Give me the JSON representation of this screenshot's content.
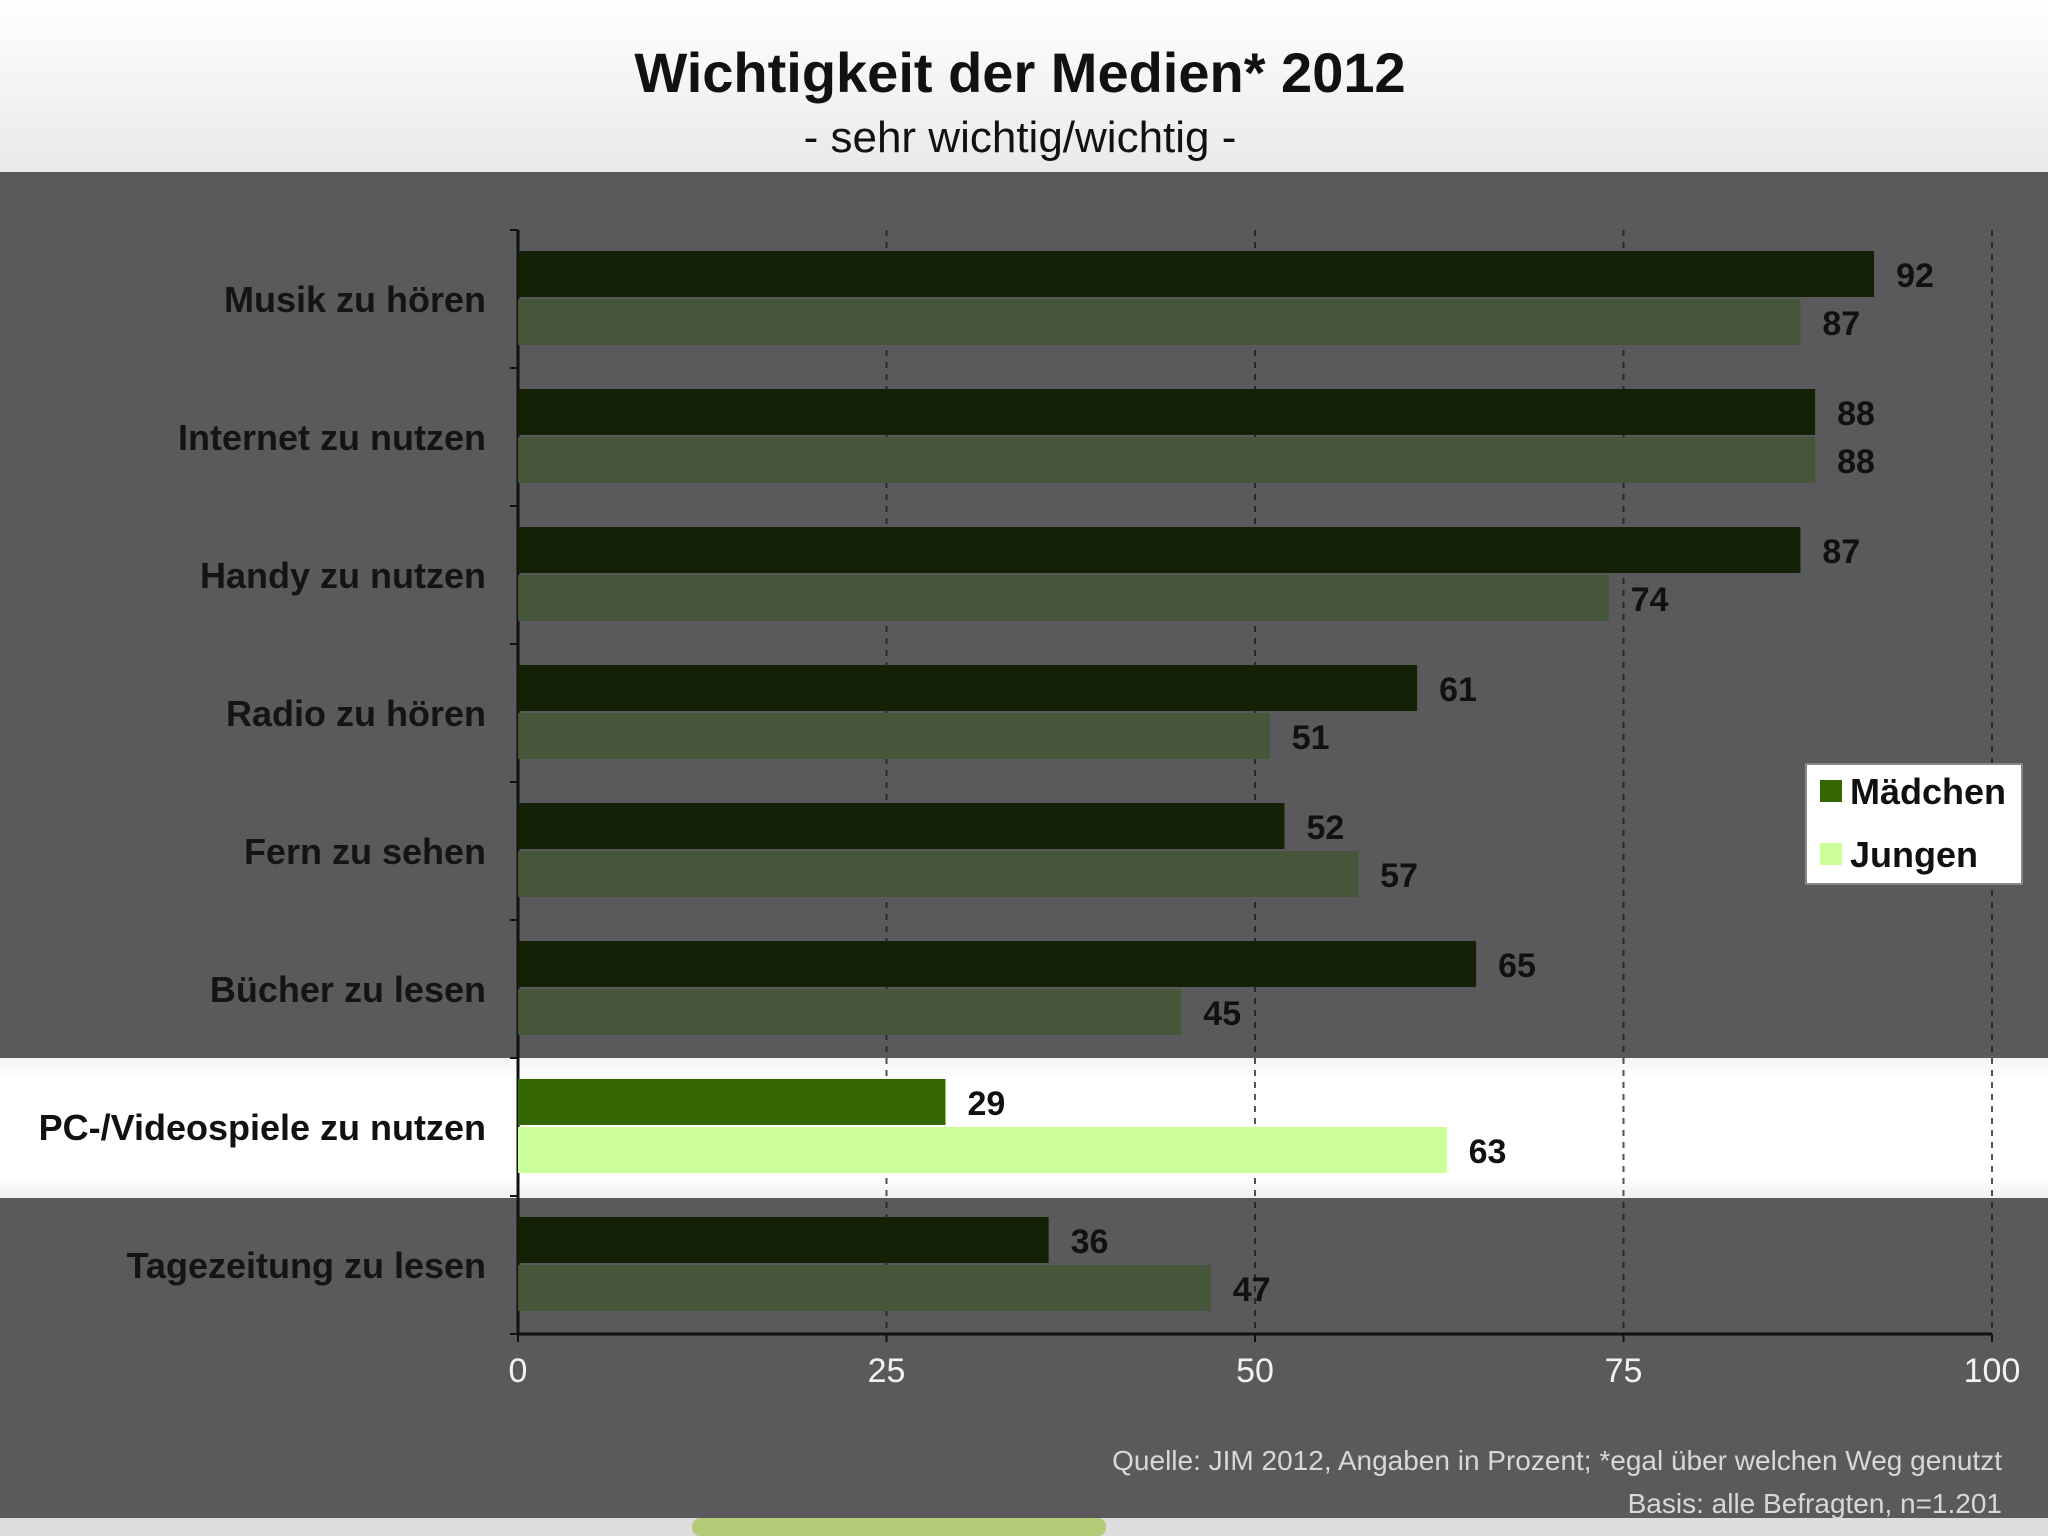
{
  "colors": {
    "top_bg": "#f1f1f1",
    "panel_bg": "#5a595b",
    "highlight_bg": "#ffffff",
    "bottom_strip": "#dddddd",
    "maedchen_dim": "#142106",
    "jungen_dim": "#46563a",
    "maedchen": "#336600",
    "jungen": "#ccff99",
    "footer_tab": "#b4cc78"
  },
  "chart_data": {
    "type": "bar",
    "orientation": "horizontal",
    "title": "Wichtigkeit der Medien* 2012",
    "subtitle": "- sehr wichtig/wichtig -",
    "categories": [
      "Musik zu hören",
      "Internet zu nutzen",
      "Handy zu nutzen",
      "Radio zu hören",
      "Fern zu sehen",
      "Bücher zu lesen",
      "PC-/Videospiele zu nutzen",
      "Tagezeitung zu lesen"
    ],
    "highlighted_category": "PC-/Videospiele zu nutzen",
    "series": [
      {
        "name": "Mädchen",
        "values": [
          92,
          88,
          87,
          61,
          52,
          65,
          29,
          36
        ]
      },
      {
        "name": "Jungen",
        "values": [
          87,
          88,
          74,
          51,
          57,
          45,
          63,
          47
        ]
      }
    ],
    "xlim": [
      0,
      100
    ],
    "xticks": [
      0,
      25,
      50,
      75,
      100
    ],
    "xlabel": "",
    "ylabel": "",
    "grid": "vertical dashed",
    "legend_position": "right",
    "source_line1": "Quelle: JIM 2012, Angaben in Prozent; *egal über welchen Weg genutzt",
    "source_line2": "Basis: alle Befragten, n=1.201"
  }
}
